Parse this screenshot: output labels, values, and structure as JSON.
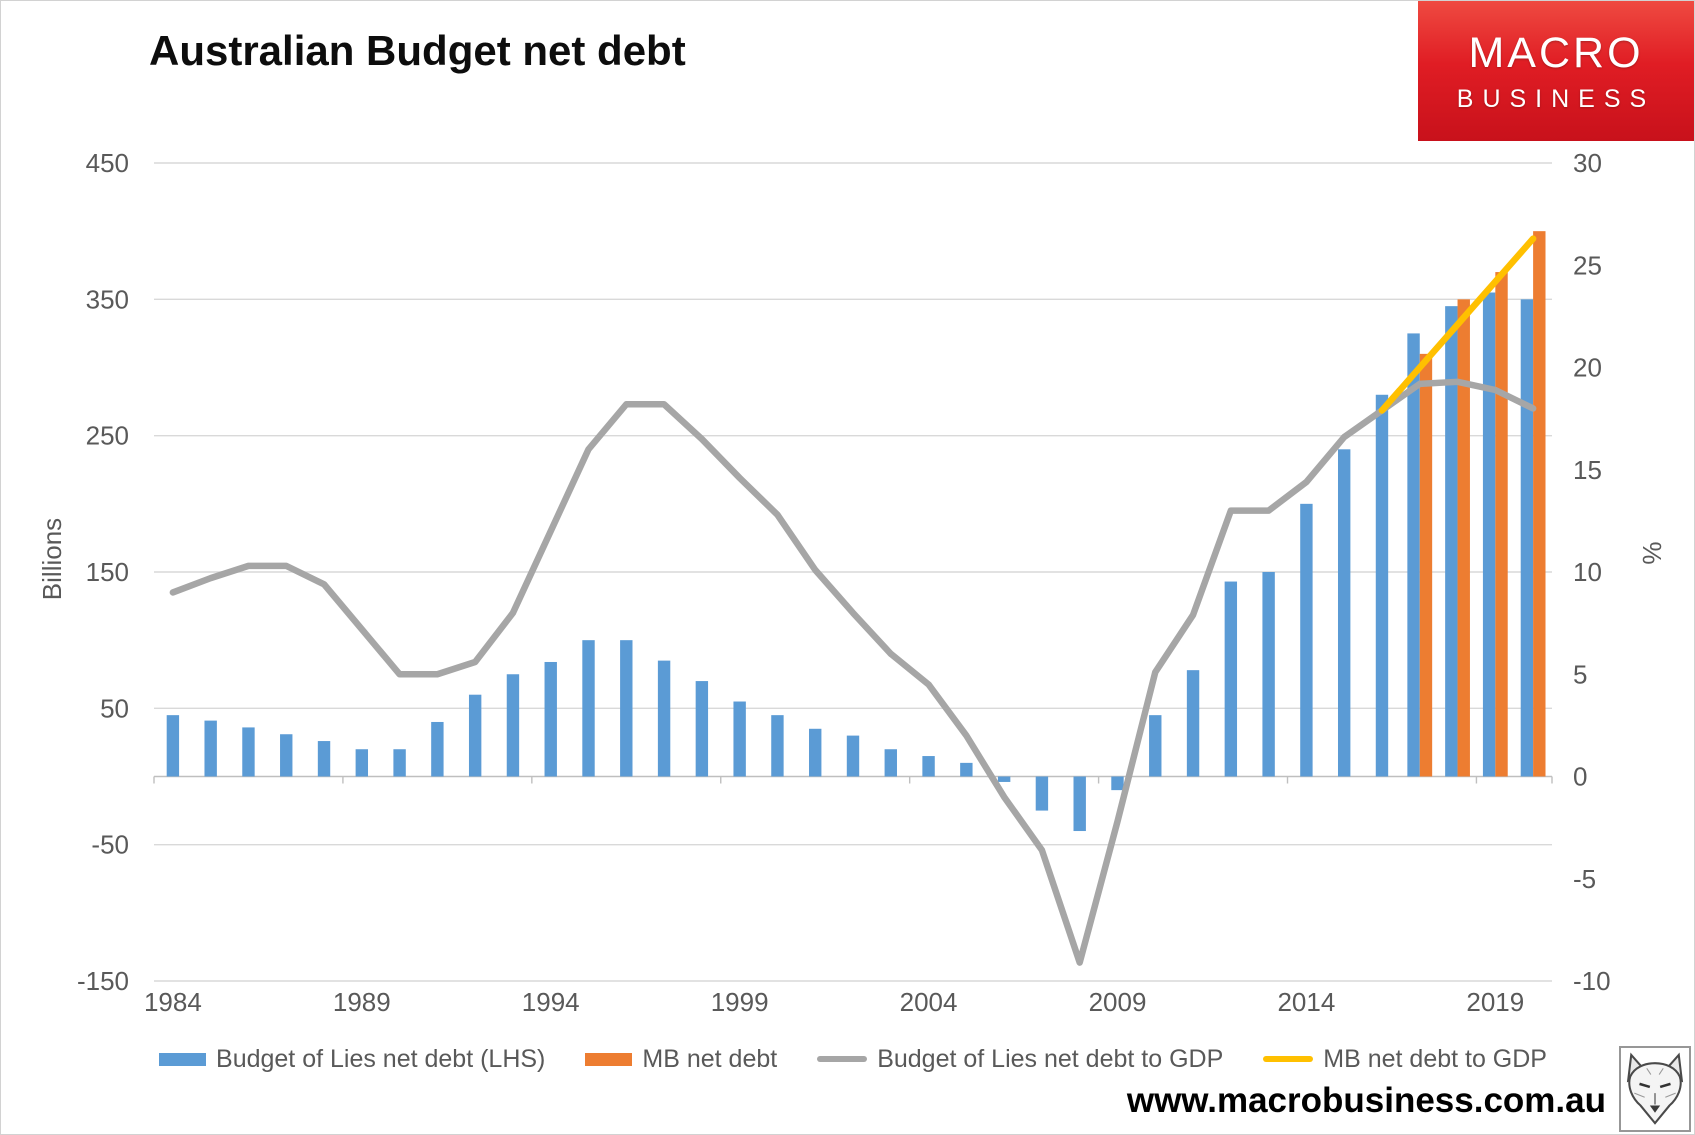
{
  "header": {
    "title": "Australian Budget net debt",
    "logo": {
      "line1": "MACRO",
      "line2": "BUSINESS"
    }
  },
  "footer": {
    "website": "www.macrobusiness.com.au"
  },
  "colors": {
    "budget_bar": "#5B9BD5",
    "mb_bar": "#ED7D31",
    "budget_line": "#A6A6A6",
    "mb_line": "#FFC000",
    "gridline": "#D9D9D9",
    "axis_line": "#BFBFBF",
    "tick_text": "#595959",
    "logo_red": "#DC1820"
  },
  "chart_data": {
    "type": "bar",
    "subtype": "bar-line-combo",
    "title": "Australian Budget net debt",
    "grid": "horizontal",
    "legend_position": "bottom",
    "categories": [
      1984,
      1985,
      1986,
      1987,
      1988,
      1989,
      1990,
      1991,
      1992,
      1993,
      1994,
      1995,
      1996,
      1997,
      1998,
      1999,
      2000,
      2001,
      2002,
      2003,
      2004,
      2005,
      2006,
      2007,
      2008,
      2009,
      2010,
      2011,
      2012,
      2013,
      2014,
      2015,
      2016,
      2017,
      2018,
      2019,
      2020
    ],
    "series": [
      {
        "name": "Budget of Lies net debt (LHS)",
        "type": "bar",
        "axis": "left",
        "color": "#5B9BD5",
        "values": [
          45,
          41,
          36,
          31,
          26,
          20,
          20,
          40,
          60,
          75,
          84,
          100,
          100,
          85,
          70,
          55,
          45,
          35,
          30,
          20,
          15,
          10,
          -4,
          -25,
          -40,
          -10,
          45,
          78,
          143,
          150,
          200,
          240,
          280,
          325,
          345,
          355,
          350
        ]
      },
      {
        "name": "MB net debt",
        "type": "bar",
        "axis": "left",
        "color": "#ED7D31",
        "values": [
          null,
          null,
          null,
          null,
          null,
          null,
          null,
          null,
          null,
          null,
          null,
          null,
          null,
          null,
          null,
          null,
          null,
          null,
          null,
          null,
          null,
          null,
          null,
          null,
          null,
          null,
          null,
          null,
          null,
          null,
          null,
          null,
          null,
          310,
          350,
          370,
          400
        ]
      },
      {
        "name": "Budget of Lies net debt to GDP",
        "type": "line",
        "axis": "right",
        "color": "#A6A6A6",
        "values": [
          9.0,
          9.7,
          10.3,
          10.3,
          9.4,
          7.2,
          5.0,
          5.0,
          5.6,
          8.0,
          12.0,
          16.0,
          18.2,
          18.2,
          16.5,
          14.6,
          12.8,
          10.1,
          8.0,
          6.0,
          4.5,
          2.0,
          -1.0,
          -3.6,
          -9.1,
          -2.2,
          5.1,
          7.9,
          13.0,
          13.0,
          14.4,
          16.6,
          17.9,
          19.2,
          19.3,
          18.9,
          18.0
        ]
      },
      {
        "name": "MB net debt to GDP",
        "type": "line",
        "axis": "right",
        "color": "#FFC000",
        "values": [
          null,
          null,
          null,
          null,
          null,
          null,
          null,
          null,
          null,
          null,
          null,
          null,
          null,
          null,
          null,
          null,
          null,
          null,
          null,
          null,
          null,
          null,
          null,
          null,
          null,
          null,
          null,
          null,
          null,
          null,
          null,
          null,
          17.9,
          20.0,
          22.1,
          24.2,
          26.3
        ]
      }
    ],
    "left_axis": {
      "title": "Billions",
      "min": -150,
      "max": 450,
      "ticks": [
        450,
        350,
        250,
        150,
        50,
        -50,
        -150
      ]
    },
    "right_axis": {
      "title": "%",
      "min": -10,
      "max": 30,
      "ticks": [
        30,
        25,
        20,
        15,
        10,
        5,
        0,
        -5,
        -10
      ]
    },
    "x_axis": {
      "tick_labels": [
        1984,
        1989,
        1994,
        1999,
        2004,
        2009,
        2014,
        2019
      ]
    }
  }
}
